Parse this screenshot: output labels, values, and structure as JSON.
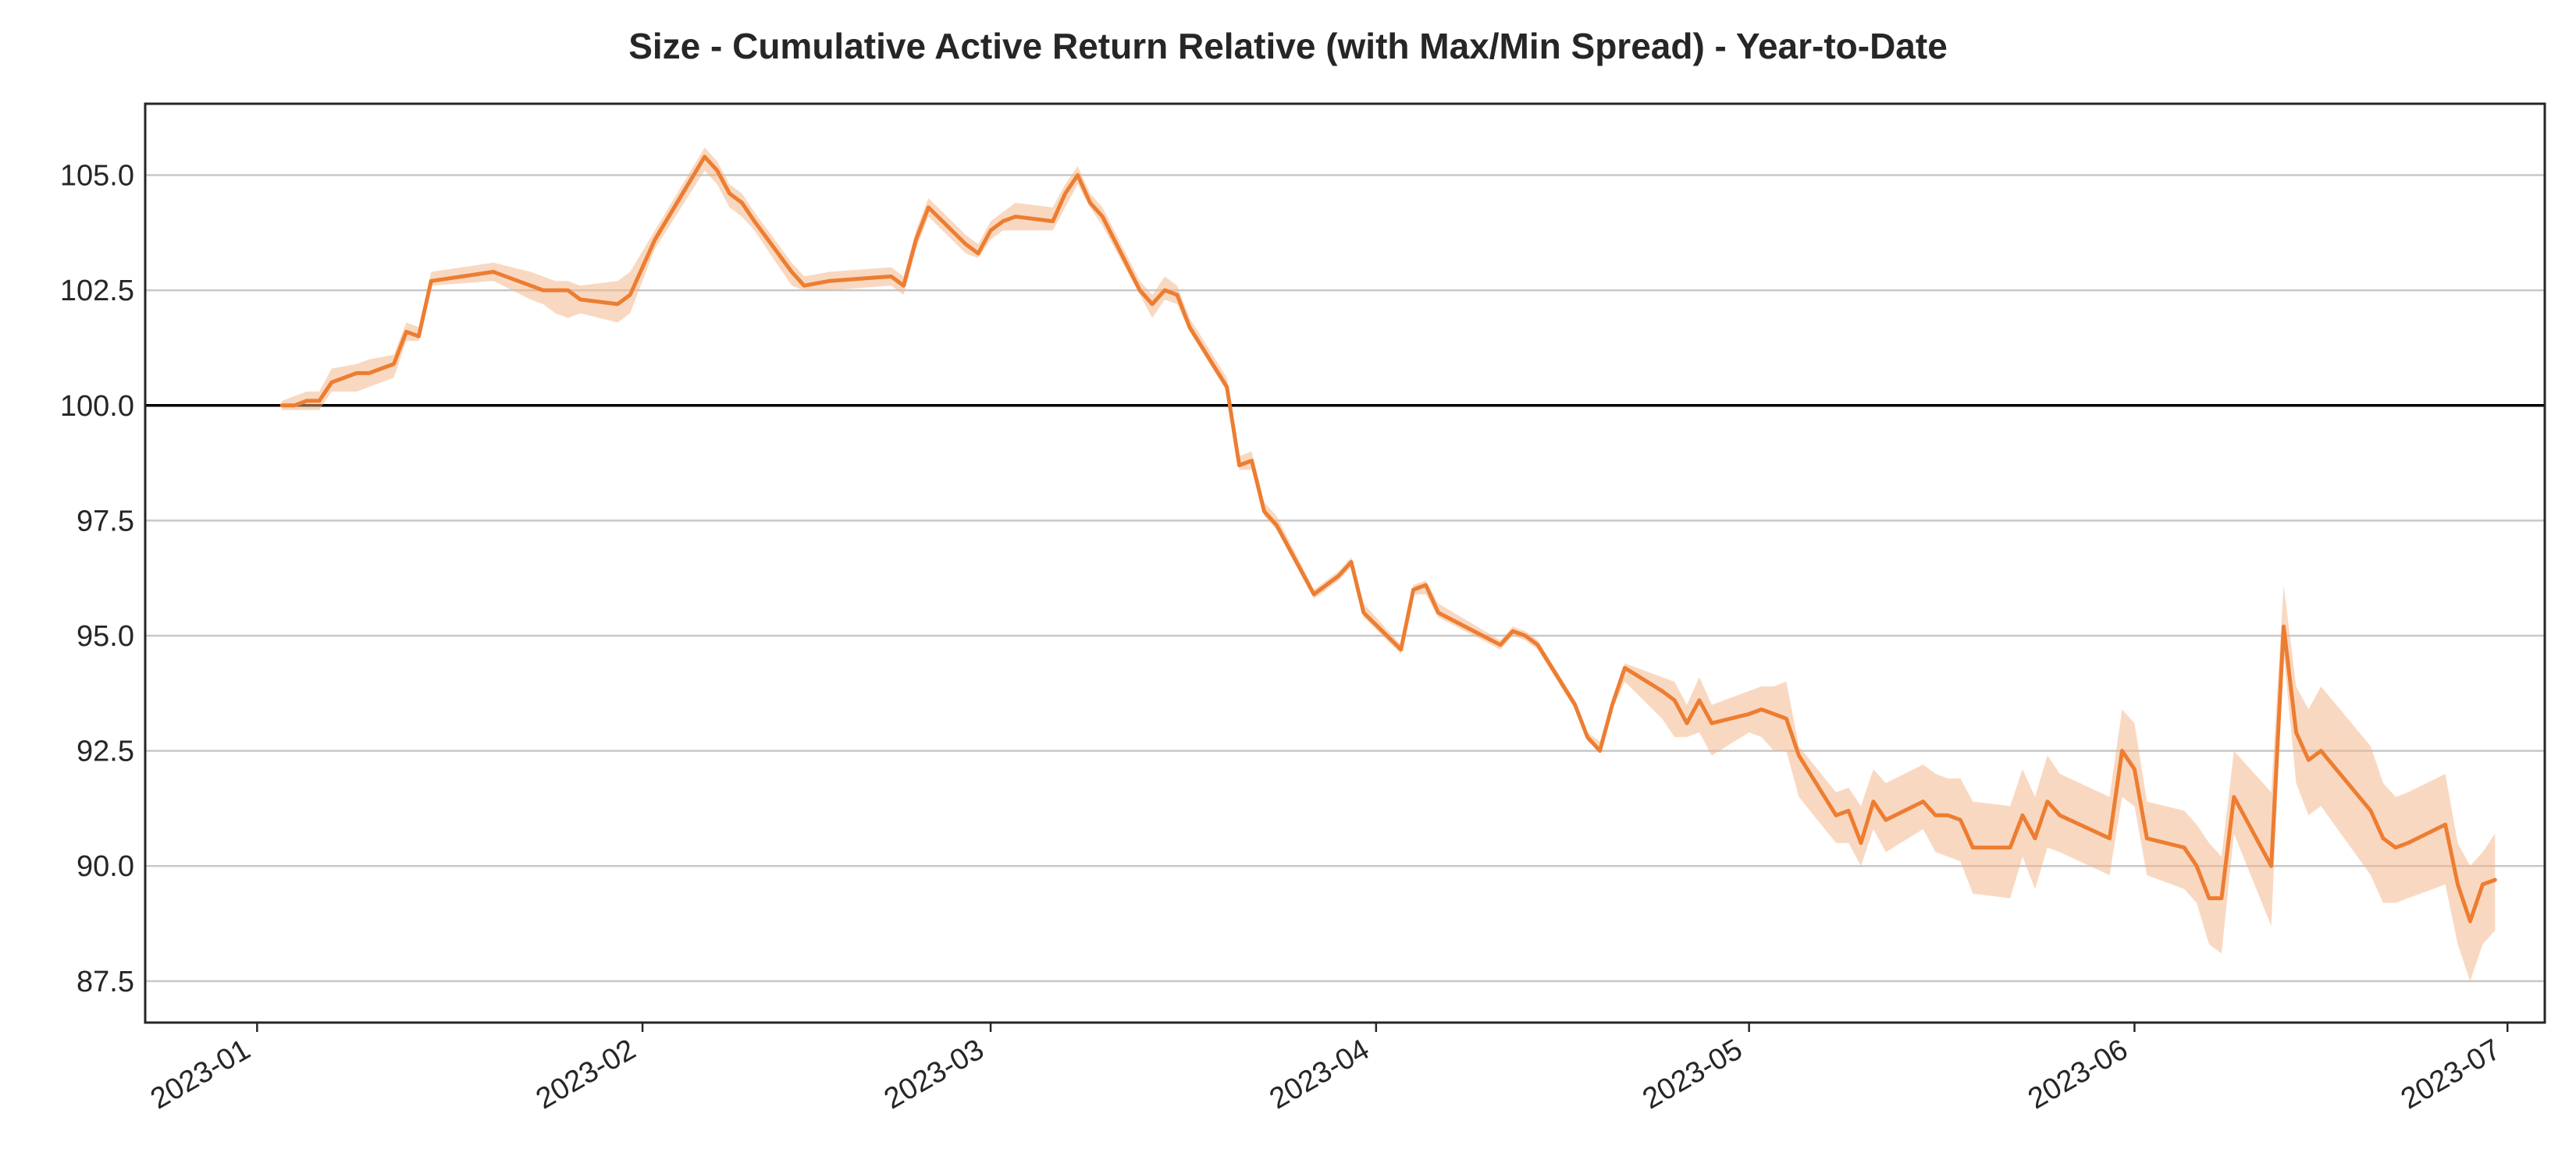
{
  "chart_data": {
    "type": "line",
    "title": "Size - Cumulative Active Return Relative (with Max/Min Spread) - Year-to-Date",
    "xlabel": "",
    "ylabel": "",
    "xlim": [
      "2022-12-23",
      "2023-07-04"
    ],
    "ylim": [
      86.6,
      106.55
    ],
    "y_ticks": [
      87.5,
      90.0,
      92.5,
      95.0,
      97.5,
      100.0,
      102.5,
      105.0
    ],
    "y_tick_labels": [
      "87.5",
      "90.0",
      "92.5",
      "95.0",
      "97.5",
      "100.0",
      "102.5",
      "105.0"
    ],
    "x_ticks": [
      "2023-01-01",
      "2023-02-01",
      "2023-03-01",
      "2023-04-01",
      "2023-05-01",
      "2023-06-01",
      "2023-07-01"
    ],
    "x_tick_labels": [
      "2023-01",
      "2023-02",
      "2023-03",
      "2023-04",
      "2023-05",
      "2023-06",
      "2023-07"
    ],
    "grid": "horizontal",
    "reference_line": 100.0,
    "colors": {
      "line": "#ED7D31",
      "band": "#F4B183",
      "reference": "#000000",
      "grid": "#C8C8C8"
    },
    "series": [
      {
        "x": [
          "2023-01-03",
          "2023-01-04",
          "2023-01-05",
          "2023-01-06",
          "2023-01-07",
          "2023-01-09",
          "2023-01-10",
          "2023-01-12",
          "2023-01-13",
          "2023-01-14",
          "2023-01-15",
          "2023-01-20",
          "2023-01-23",
          "2023-01-24",
          "2023-01-25",
          "2023-01-26",
          "2023-01-27",
          "2023-01-30",
          "2023-01-31",
          "2023-02-02",
          "2023-02-06",
          "2023-02-07",
          "2023-02-08",
          "2023-02-09",
          "2023-02-10",
          "2023-02-13",
          "2023-02-14",
          "2023-02-16",
          "2023-02-21",
          "2023-02-22",
          "2023-02-23",
          "2023-02-24",
          "2023-02-27",
          "2023-02-28",
          "2023-03-01",
          "2023-03-02",
          "2023-03-03",
          "2023-03-06",
          "2023-03-07",
          "2023-03-08",
          "2023-03-09",
          "2023-03-10",
          "2023-03-13",
          "2023-03-14",
          "2023-03-15",
          "2023-03-16",
          "2023-03-17",
          "2023-03-20",
          "2023-03-21",
          "2023-03-22",
          "2023-03-23",
          "2023-03-24",
          "2023-03-27",
          "2023-03-28",
          "2023-03-29",
          "2023-03-30",
          "2023-03-31",
          "2023-04-03",
          "2023-04-04",
          "2023-04-05",
          "2023-04-06",
          "2023-04-11",
          "2023-04-12",
          "2023-04-13",
          "2023-04-14",
          "2023-04-17",
          "2023-04-18",
          "2023-04-19",
          "2023-04-20",
          "2023-04-21",
          "2023-04-24",
          "2023-04-25",
          "2023-04-26",
          "2023-04-27",
          "2023-04-28",
          "2023-05-01",
          "2023-05-02",
          "2023-05-03",
          "2023-05-04",
          "2023-05-05",
          "2023-05-08",
          "2023-05-09",
          "2023-05-10",
          "2023-05-11",
          "2023-05-12",
          "2023-05-15",
          "2023-05-16",
          "2023-05-17",
          "2023-05-18",
          "2023-05-19",
          "2023-05-22",
          "2023-05-23",
          "2023-05-24",
          "2023-05-25",
          "2023-05-26",
          "2023-05-30",
          "2023-05-31",
          "2023-06-01",
          "2023-06-02",
          "2023-06-05",
          "2023-06-06",
          "2023-06-07",
          "2023-06-08",
          "2023-06-09",
          "2023-06-12",
          "2023-06-13",
          "2023-06-14",
          "2023-06-15",
          "2023-06-16",
          "2023-06-20",
          "2023-06-21",
          "2023-06-22",
          "2023-06-23",
          "2023-06-26",
          "2023-06-27",
          "2023-06-28",
          "2023-06-29",
          "2023-06-30"
        ],
        "values": [
          100.0,
          100.0,
          100.1,
          100.1,
          100.5,
          100.7,
          100.7,
          100.9,
          101.6,
          101.5,
          102.7,
          102.9,
          102.6,
          102.5,
          102.5,
          102.5,
          102.3,
          102.2,
          102.4,
          103.6,
          105.4,
          105.1,
          104.6,
          104.4,
          104.0,
          102.9,
          102.6,
          102.7,
          102.8,
          102.6,
          103.6,
          104.3,
          103.5,
          103.3,
          103.8,
          104.0,
          104.1,
          104.0,
          104.6,
          105.0,
          104.4,
          104.1,
          102.5,
          102.2,
          102.5,
          102.4,
          101.7,
          100.4,
          98.7,
          98.8,
          97.7,
          97.4,
          95.9,
          96.1,
          96.3,
          96.6,
          95.5,
          94.7,
          96.0,
          96.1,
          95.5,
          94.8,
          95.1,
          95.0,
          94.8,
          93.5,
          92.8,
          92.5,
          93.5,
          94.3,
          93.8,
          93.6,
          93.1,
          93.6,
          93.1,
          93.3,
          93.4,
          93.3,
          93.2,
          92.4,
          91.1,
          91.2,
          90.5,
          91.4,
          91.0,
          91.4,
          91.1,
          91.1,
          91.0,
          90.4,
          90.4,
          91.1,
          90.6,
          91.4,
          91.1,
          90.6,
          92.5,
          92.1,
          90.6,
          90.4,
          90.0,
          89.3,
          89.3,
          91.5,
          90.0,
          95.2,
          92.9,
          92.3,
          92.5,
          91.2,
          90.6,
          90.4,
          90.5,
          90.9,
          89.6,
          88.8,
          89.6,
          89.7
        ],
        "min": [
          99.9,
          99.9,
          99.9,
          99.9,
          100.3,
          100.3,
          100.4,
          100.6,
          101.4,
          101.4,
          102.6,
          102.7,
          102.3,
          102.2,
          102.0,
          101.9,
          102.0,
          101.8,
          102.0,
          103.4,
          105.1,
          104.8,
          104.3,
          104.1,
          103.8,
          102.6,
          102.5,
          102.5,
          102.6,
          102.4,
          103.4,
          104.1,
          103.3,
          103.2,
          103.6,
          103.8,
          103.8,
          103.8,
          104.3,
          104.8,
          104.3,
          103.9,
          102.4,
          101.9,
          102.3,
          102.2,
          101.6,
          100.3,
          98.6,
          98.6,
          97.6,
          97.3,
          95.8,
          96.0,
          96.2,
          96.5,
          95.4,
          94.6,
          95.9,
          95.9,
          95.4,
          94.7,
          95.0,
          94.9,
          94.7,
          93.4,
          92.7,
          92.5,
          93.4,
          94.0,
          93.2,
          92.8,
          92.8,
          92.9,
          92.4,
          92.9,
          92.8,
          92.5,
          92.5,
          91.5,
          90.5,
          90.5,
          90.0,
          90.8,
          90.3,
          90.8,
          90.3,
          90.2,
          90.1,
          89.4,
          89.3,
          90.2,
          89.5,
          90.4,
          90.3,
          89.8,
          91.5,
          91.3,
          89.8,
          89.5,
          89.2,
          88.3,
          88.1,
          90.7,
          88.7,
          94.6,
          91.8,
          91.1,
          91.3,
          89.8,
          89.2,
          89.2,
          89.3,
          89.6,
          88.3,
          87.5,
          88.3,
          88.6
        ],
        "max": [
          100.1,
          100.2,
          100.3,
          100.3,
          100.8,
          100.9,
          101.0,
          101.1,
          101.8,
          101.7,
          102.9,
          103.1,
          102.9,
          102.8,
          102.7,
          102.7,
          102.6,
          102.7,
          102.9,
          103.8,
          105.6,
          105.3,
          104.8,
          104.6,
          104.2,
          103.1,
          102.8,
          102.9,
          103.0,
          102.8,
          103.8,
          104.5,
          103.7,
          103.5,
          104.0,
          104.2,
          104.4,
          104.3,
          104.8,
          105.2,
          104.6,
          104.3,
          102.7,
          102.4,
          102.8,
          102.6,
          101.9,
          100.6,
          98.9,
          99.0,
          97.9,
          97.6,
          96.0,
          96.2,
          96.4,
          96.7,
          95.7,
          94.8,
          96.1,
          96.2,
          95.7,
          94.9,
          95.2,
          95.1,
          94.9,
          93.6,
          92.9,
          92.7,
          93.6,
          94.4,
          94.1,
          94.0,
          93.5,
          94.1,
          93.5,
          93.8,
          93.9,
          93.9,
          94.0,
          92.6,
          91.6,
          91.7,
          91.3,
          92.1,
          91.8,
          92.2,
          92.0,
          91.9,
          91.9,
          91.4,
          91.3,
          92.1,
          91.5,
          92.4,
          92.0,
          91.5,
          93.4,
          93.1,
          91.4,
          91.2,
          90.9,
          90.5,
          90.2,
          92.5,
          91.6,
          96.1,
          93.9,
          93.4,
          93.9,
          92.6,
          91.8,
          91.5,
          91.6,
          92.0,
          90.5,
          90.0,
          90.3,
          90.7
        ]
      }
    ]
  }
}
